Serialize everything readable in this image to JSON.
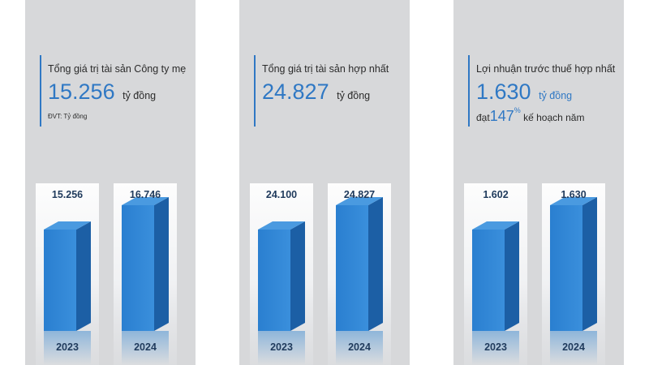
{
  "panels": [
    {
      "title": "Tổng giá trị tài sản Công ty mẹ",
      "big_value": "15.256",
      "unit": "tỷ đồng",
      "note": "ĐVT: Tỷ đồng"
    },
    {
      "title": "Tổng giá trị tài sản hợp nhất",
      "big_value": "24.827",
      "unit": "tỷ đồng"
    },
    {
      "title": "Lợi nhuận trước thuế hợp nhất",
      "big_value": "1.630",
      "unit": "tỷ đồng",
      "plan_prefix": "đạt",
      "plan_value": "147",
      "plan_sup": "%",
      "plan_suffix": "kế hoạch năm"
    }
  ],
  "colors": {
    "accent": "#2f78c4",
    "bar_front": "#2a7fd0",
    "bar_side": "#1c5fa5",
    "bar_top": "#4a9ae0",
    "label": "#1f3a5c"
  },
  "chart_data": [
    {
      "type": "bar",
      "title": "Tổng giá trị tài sản Công ty mẹ",
      "categories": [
        "2023",
        "2024"
      ],
      "values": [
        15256,
        16746
      ],
      "labels": [
        "15.256",
        "16.746"
      ],
      "ylabel": "Tỷ đồng"
    },
    {
      "type": "bar",
      "title": "Tổng giá trị tài sản hợp nhất",
      "categories": [
        "2023",
        "2024"
      ],
      "values": [
        24100,
        24827
      ],
      "labels": [
        "24.100",
        "24.827"
      ],
      "ylabel": "Tỷ đồng"
    },
    {
      "type": "bar",
      "title": "Lợi nhuận trước thuế hợp nhất",
      "categories": [
        "2023",
        "2024"
      ],
      "values": [
        1602,
        1630
      ],
      "labels": [
        "1.602",
        "1.630"
      ],
      "ylabel": "Tỷ đồng"
    }
  ]
}
